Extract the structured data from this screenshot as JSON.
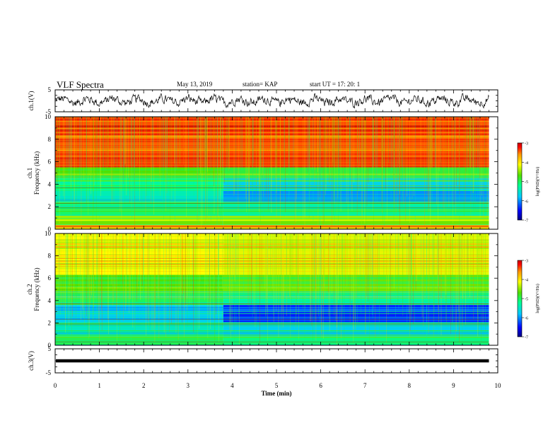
{
  "header": {
    "title": "VLF Spectra",
    "date": "May 13, 2019",
    "station": "station= KAP",
    "start": "start  UT =   17: 20: 1"
  },
  "chart_data": [
    {
      "type": "line",
      "panel": "ch1-voltage",
      "ylabel": "ch.1(V)",
      "yticks": [
        "5",
        "-5"
      ],
      "ylim": [
        -5,
        5
      ],
      "description_level": "noisy waveform around 0 V, amplitude about ±2 V",
      "xlim": [
        0,
        10
      ]
    },
    {
      "type": "heatmap",
      "panel": "ch1-spectrogram",
      "ylabel": [
        "ch.1",
        "Frequency  (kHz)"
      ],
      "yticks": [
        "0",
        "2",
        "4",
        "6",
        "8",
        "10"
      ],
      "ylim": [
        0,
        10
      ],
      "xlim": [
        0,
        10
      ],
      "colorbar": {
        "label": "log(PSD)(V²/Hz)",
        "ticks": [
          "-3",
          "-4",
          "-5",
          "-6",
          "-7"
        ],
        "range": [
          -7,
          -3
        ]
      },
      "transition_min": 3.8,
      "data_end_min": 9.8,
      "bands_kHz": [
        {
          "from": 5.5,
          "to": 10,
          "value_before": -3.4,
          "value_after": -3.4
        },
        {
          "from": 4.6,
          "to": 5.5,
          "value_before": -4.7,
          "value_after": -4.9
        },
        {
          "from": 3.4,
          "to": 4.6,
          "value_before": -5.2,
          "value_after": -5.7
        },
        {
          "from": 2.4,
          "to": 3.4,
          "value_before": -5.4,
          "value_after": -6.0
        },
        {
          "from": 1.2,
          "to": 2.4,
          "value_before": -5.1,
          "value_after": -5.3
        },
        {
          "from": 0.4,
          "to": 1.2,
          "value_before": -4.6,
          "value_after": -4.6
        },
        {
          "from": 0.0,
          "to": 0.4,
          "value_before": -3.8,
          "value_after": -3.8
        }
      ]
    },
    {
      "type": "heatmap",
      "panel": "ch2-spectrogram",
      "ylabel": [
        "ch.2",
        "Frequency  (kHz)"
      ],
      "yticks": [
        "0",
        "2",
        "4",
        "6",
        "8",
        "10"
      ],
      "ylim": [
        0,
        10
      ],
      "xlim": [
        0,
        10
      ],
      "colorbar": {
        "label": "log(PSD)(V²/Hz)",
        "ticks": [
          "-3",
          "-4",
          "-5",
          "-6",
          "-7"
        ],
        "range": [
          -7,
          -3
        ]
      },
      "transition_min": 3.8,
      "data_end_min": 9.8,
      "bands_kHz": [
        {
          "from": 6.3,
          "to": 10,
          "value_before": -4.1,
          "value_after": -4.2
        },
        {
          "from": 4.8,
          "to": 6.3,
          "value_before": -4.7,
          "value_after": -4.6
        },
        {
          "from": 3.6,
          "to": 4.8,
          "value_before": -5.0,
          "value_after": -5.3
        },
        {
          "from": 2.0,
          "to": 3.6,
          "value_before": -5.7,
          "value_after": -6.4
        },
        {
          "from": 0.8,
          "to": 2.0,
          "value_before": -5.4,
          "value_after": -5.7
        },
        {
          "from": 0.0,
          "to": 0.8,
          "value_before": -5.0,
          "value_after": -5.2
        }
      ]
    },
    {
      "type": "line",
      "panel": "ch3-voltage",
      "ylabel": "ch.3(V)",
      "yticks": [
        "5",
        "-5"
      ],
      "ylim": [
        -5,
        5
      ],
      "value": 0,
      "description_level": "flat line near 0 V",
      "xlim": [
        0,
        10
      ]
    }
  ],
  "xaxis": {
    "label": "Time  (min)",
    "ticks": [
      "0",
      "1",
      "2",
      "3",
      "4",
      "5",
      "6",
      "7",
      "8",
      "9",
      "10"
    ],
    "range": [
      0,
      10
    ]
  },
  "colors": {
    "colormap": [
      "#0000a0",
      "#0000ff",
      "#00c8ff",
      "#00ff90",
      "#50e000",
      "#ffff00",
      "#ff9900",
      "#ff0000",
      "#b00000"
    ]
  }
}
